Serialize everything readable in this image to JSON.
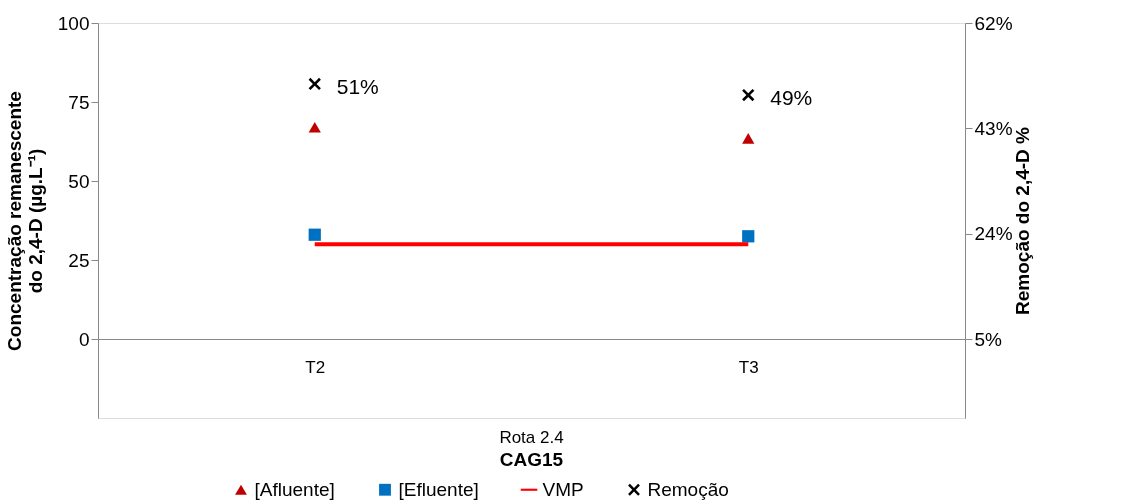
{
  "chart_data": {
    "type": "scatter",
    "categories": [
      "T2",
      "T3"
    ],
    "xlabel": "CAG15",
    "annotations": [
      "Rota 2.4"
    ],
    "ylabel": "Concentração remanescente\ndo 2,4-D (µg.L⁻¹)",
    "y2label": "Remoção do 2,4-D %",
    "ylim": [
      -25,
      100
    ],
    "yticks": [
      0,
      25,
      50,
      75,
      100
    ],
    "y2lim": [
      -9.25,
      62
    ],
    "y2ticks": [
      {
        "value": 5,
        "label": "5%"
      },
      {
        "value": 24,
        "label": "24%"
      },
      {
        "value": 43,
        "label": "43%"
      },
      {
        "value": 62,
        "label": "62%"
      }
    ],
    "series": [
      {
        "name": "[Afluente]",
        "marker": "triangle",
        "color": "#c00000",
        "values": [
          67,
          63.5
        ]
      },
      {
        "name": "[Efluente]",
        "marker": "square",
        "color": "#0070c0",
        "values": [
          33,
          32.5
        ]
      },
      {
        "name": "VMP",
        "type": "line",
        "line_style": "solid",
        "color": "#ff0000",
        "values": [
          30,
          30
        ]
      },
      {
        "name": "Remoção",
        "marker": "cross",
        "color": "#000000",
        "axis": "y2",
        "values": [
          51,
          49
        ],
        "value_labels": [
          "51%",
          "49%"
        ]
      }
    ],
    "legend": "bottom",
    "grid": false
  }
}
